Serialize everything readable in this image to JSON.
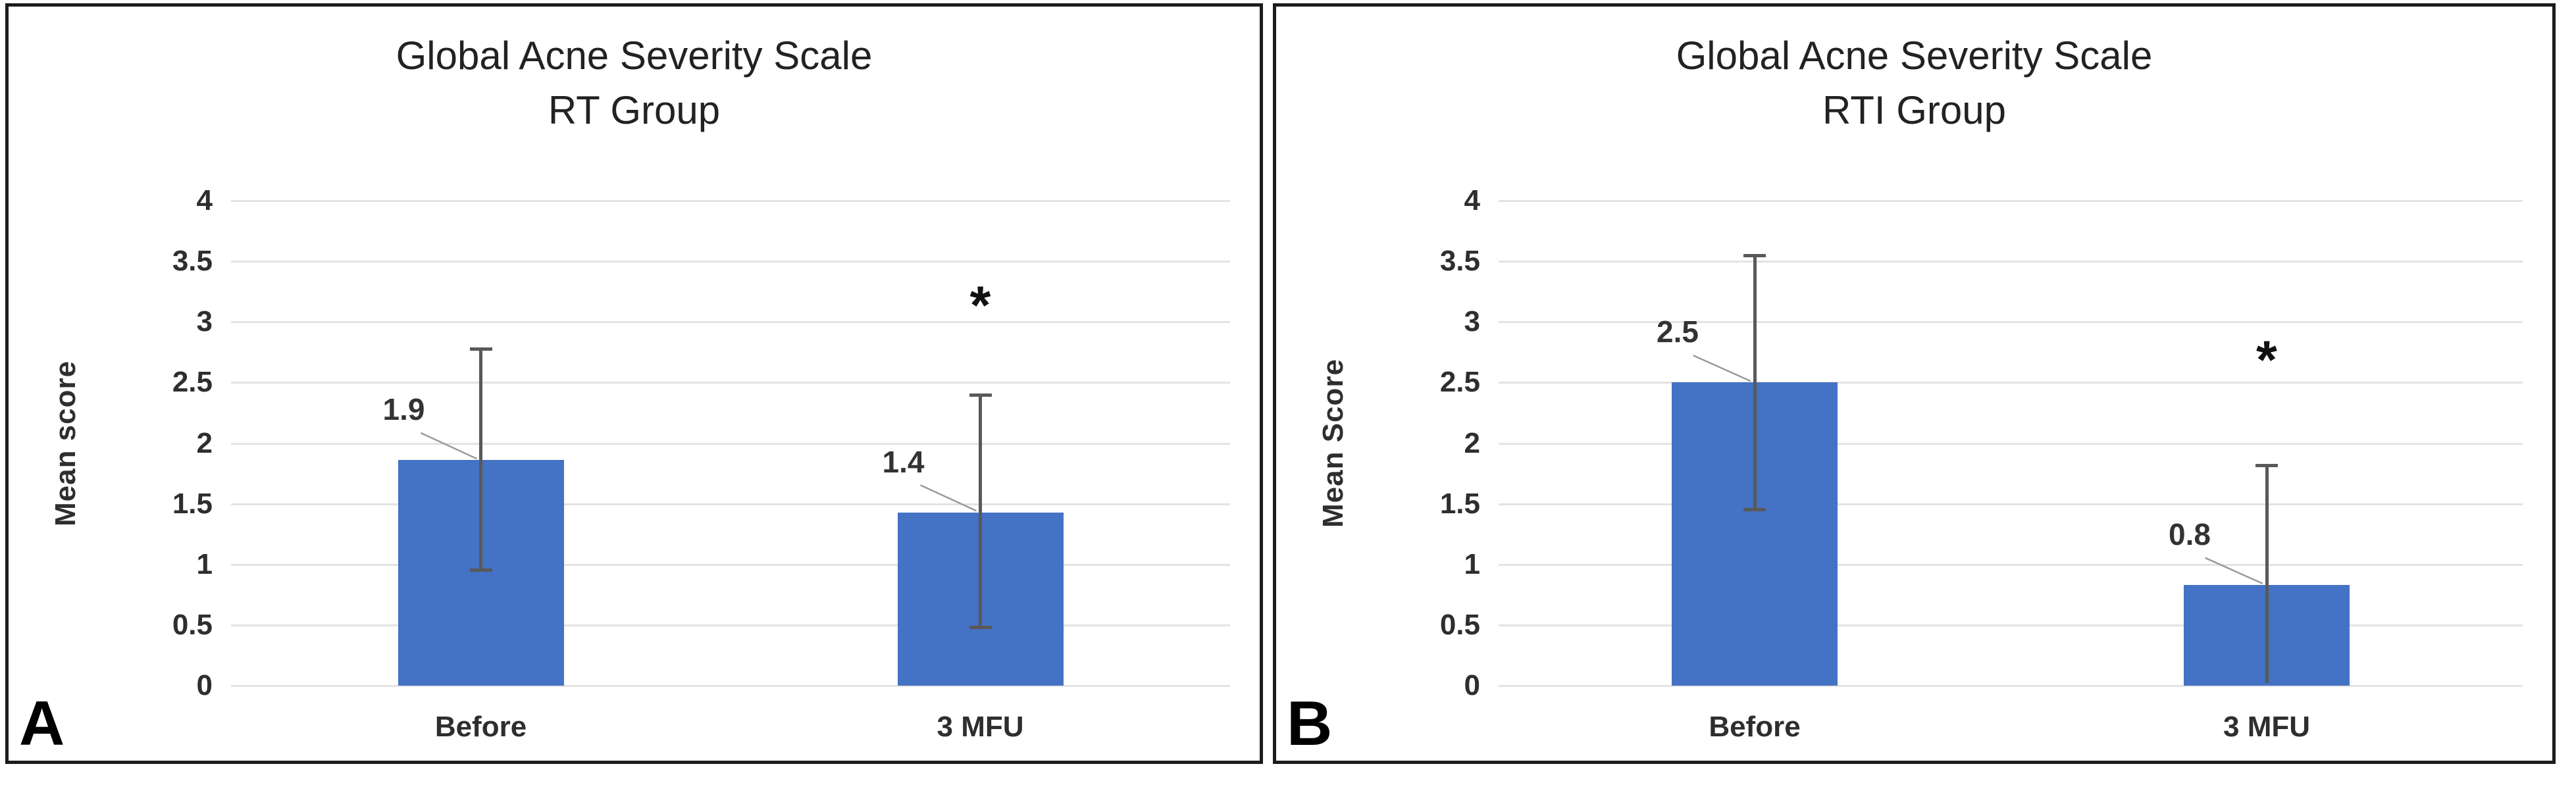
{
  "figure": {
    "background": "#ffffff",
    "panels": [
      {
        "letter": "A"
      },
      {
        "letter": "B"
      }
    ]
  },
  "chart_data": [
    {
      "type": "bar",
      "title": "Global Acne Severity Scale",
      "subtitle": "RT Group",
      "xlabel": "",
      "ylabel": "Mean score",
      "ylim": [
        0,
        4
      ],
      "yticks": [
        "0",
        "0.5",
        "1",
        "1.5",
        "2",
        "2.5",
        "3",
        "3.5",
        "4"
      ],
      "grid": true,
      "legend": false,
      "categories": [
        "Before",
        "3 MFU"
      ],
      "values": [
        1.86,
        1.43
      ],
      "data_labels": [
        "1.9",
        "1.4"
      ],
      "error_bars": [
        {
          "low": 0.95,
          "high": 2.78,
          "low_cap": true
        },
        {
          "low": 0.48,
          "high": 2.4,
          "low_cap": true
        }
      ],
      "annotations": [
        {
          "text": "*",
          "category_index": 1,
          "y": 3.0
        }
      ],
      "bar_color": "#4472C4",
      "error_color": "#595959",
      "gridline_color": "#e3e3e3",
      "leader_color": "#9a9a9a"
    },
    {
      "type": "bar",
      "title": "Global Acne Severity Scale",
      "subtitle": "RTI Group",
      "xlabel": "",
      "ylabel": "Mean Score",
      "ylim": [
        0,
        4
      ],
      "yticks": [
        "0",
        "0.5",
        "1",
        "1.5",
        "2",
        "2.5",
        "3",
        "3.5",
        "4"
      ],
      "grid": true,
      "legend": false,
      "categories": [
        "Before",
        "3 MFU"
      ],
      "values": [
        2.5,
        0.83
      ],
      "data_labels": [
        "2.5",
        "0.8"
      ],
      "error_bars": [
        {
          "low": 1.45,
          "high": 3.55,
          "low_cap": true
        },
        {
          "low": 0.02,
          "high": 1.82,
          "low_cap": false
        }
      ],
      "annotations": [
        {
          "text": "*",
          "category_index": 1,
          "y": 2.55
        }
      ],
      "bar_color": "#4472C4",
      "error_color": "#595959",
      "gridline_color": "#e3e3e3",
      "leader_color": "#9a9a9a"
    }
  ]
}
